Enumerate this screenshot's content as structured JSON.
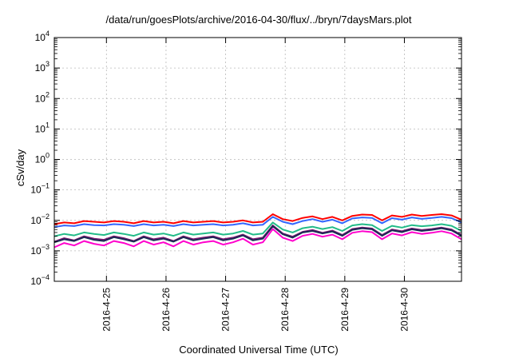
{
  "chart_data": {
    "type": "line",
    "title": "/data/run/goesPlots/archive/2016-04-30/flux/../bryn/7daysMars.plot",
    "xlabel": "Coordinated Universal Time (UTC)",
    "ylabel": "cSv/day",
    "yscale": "log",
    "ylim": [
      0.0001,
      10000
    ],
    "ytick_exponents": [
      -4,
      -3,
      -2,
      -1,
      0,
      1,
      2,
      3,
      4
    ],
    "xlim": [
      "2016-04-24T03:00",
      "2016-04-30T23:00"
    ],
    "x_ticks": [
      "2016-4-25",
      "2016-4-26",
      "2016-4-27",
      "2016-4-28",
      "2016-4-29",
      "2016-4-30"
    ],
    "grid": true,
    "x": [
      "2016-04-24T03:00",
      "2016-04-24T07:00",
      "2016-04-24T11:00",
      "2016-04-24T15:00",
      "2016-04-24T19:00",
      "2016-04-24T23:00",
      "2016-04-25T03:00",
      "2016-04-25T07:00",
      "2016-04-25T11:00",
      "2016-04-25T15:00",
      "2016-04-25T19:00",
      "2016-04-25T23:00",
      "2016-04-26T03:00",
      "2016-04-26T07:00",
      "2016-04-26T11:00",
      "2016-04-26T15:00",
      "2016-04-26T19:00",
      "2016-04-26T23:00",
      "2016-04-27T03:00",
      "2016-04-27T07:00",
      "2016-04-27T11:00",
      "2016-04-27T15:00",
      "2016-04-27T19:00",
      "2016-04-27T23:00",
      "2016-04-28T03:00",
      "2016-04-28T07:00",
      "2016-04-28T11:00",
      "2016-04-28T15:00",
      "2016-04-28T19:00",
      "2016-04-28T23:00",
      "2016-04-29T03:00",
      "2016-04-29T07:00",
      "2016-04-29T11:00",
      "2016-04-29T15:00",
      "2016-04-29T19:00",
      "2016-04-29T23:00",
      "2016-04-30T03:00",
      "2016-04-30T07:00",
      "2016-04-30T11:00",
      "2016-04-30T15:00",
      "2016-04-30T19:00",
      "2016-04-30T23:00"
    ],
    "series": [
      {
        "color": "#ff0000",
        "values": [
          0.0075,
          0.0085,
          0.008,
          0.0095,
          0.009,
          0.0085,
          0.0095,
          0.009,
          0.008,
          0.0095,
          0.0085,
          0.009,
          0.008,
          0.0095,
          0.0085,
          0.009,
          0.0095,
          0.0085,
          0.009,
          0.01,
          0.0085,
          0.009,
          0.016,
          0.011,
          0.0095,
          0.012,
          0.0135,
          0.011,
          0.013,
          0.01,
          0.014,
          0.0155,
          0.015,
          0.01,
          0.0145,
          0.013,
          0.0155,
          0.014,
          0.015,
          0.016,
          0.0145,
          0.0105
        ]
      },
      {
        "color": "#3366ff",
        "values": [
          0.006,
          0.0068,
          0.0065,
          0.0075,
          0.007,
          0.0068,
          0.0075,
          0.0072,
          0.0065,
          0.0075,
          0.0068,
          0.0072,
          0.0065,
          0.0075,
          0.0068,
          0.0072,
          0.0075,
          0.0068,
          0.0072,
          0.008,
          0.0068,
          0.0072,
          0.013,
          0.009,
          0.0075,
          0.0095,
          0.011,
          0.009,
          0.0105,
          0.008,
          0.0115,
          0.0125,
          0.012,
          0.008,
          0.0118,
          0.0105,
          0.0125,
          0.0112,
          0.012,
          0.013,
          0.0118,
          0.0085
        ]
      },
      {
        "color": "#22bb88",
        "values": [
          0.003,
          0.0036,
          0.0032,
          0.004,
          0.0036,
          0.0033,
          0.004,
          0.0036,
          0.0031,
          0.004,
          0.0034,
          0.0037,
          0.0031,
          0.004,
          0.0034,
          0.0037,
          0.004,
          0.0034,
          0.0037,
          0.0045,
          0.0034,
          0.0037,
          0.0085,
          0.005,
          0.004,
          0.0055,
          0.0062,
          0.0052,
          0.006,
          0.0045,
          0.0068,
          0.0075,
          0.007,
          0.0045,
          0.0066,
          0.0058,
          0.007,
          0.0064,
          0.0068,
          0.0075,
          0.0066,
          0.0045
        ]
      },
      {
        "color": "#7a1570",
        "values": [
          0.002,
          0.0026,
          0.0022,
          0.003,
          0.0025,
          0.0023,
          0.003,
          0.0026,
          0.0021,
          0.003,
          0.0024,
          0.0027,
          0.0021,
          0.003,
          0.0024,
          0.0027,
          0.003,
          0.0024,
          0.0027,
          0.0034,
          0.0024,
          0.0027,
          0.0068,
          0.0037,
          0.0029,
          0.0042,
          0.0048,
          0.0039,
          0.0046,
          0.0033,
          0.0052,
          0.0058,
          0.0054,
          0.0033,
          0.005,
          0.0044,
          0.0054,
          0.0048,
          0.0052,
          0.0058,
          0.005,
          0.0033
        ]
      },
      {
        "color": "#1a2a55",
        "values": [
          0.0019,
          0.0024,
          0.0021,
          0.0028,
          0.0023,
          0.0021,
          0.0028,
          0.0024,
          0.002,
          0.0028,
          0.0022,
          0.0025,
          0.002,
          0.0028,
          0.0022,
          0.0025,
          0.0028,
          0.0022,
          0.0025,
          0.0032,
          0.0022,
          0.0025,
          0.0064,
          0.0035,
          0.0027,
          0.004,
          0.0045,
          0.0037,
          0.0043,
          0.0031,
          0.0049,
          0.0055,
          0.0051,
          0.0031,
          0.0047,
          0.0041,
          0.0051,
          0.0045,
          0.0049,
          0.0055,
          0.0047,
          0.0031
        ]
      },
      {
        "color": "#ff00cc",
        "values": [
          0.0013,
          0.0018,
          0.0015,
          0.0021,
          0.0017,
          0.0015,
          0.0021,
          0.0018,
          0.0014,
          0.0021,
          0.0016,
          0.0019,
          0.0014,
          0.0021,
          0.0016,
          0.0019,
          0.0021,
          0.0016,
          0.0019,
          0.0025,
          0.0016,
          0.0019,
          0.0052,
          0.0027,
          0.0021,
          0.0031,
          0.0036,
          0.0029,
          0.0034,
          0.0024,
          0.0039,
          0.0044,
          0.0041,
          0.0024,
          0.0037,
          0.0032,
          0.0041,
          0.0036,
          0.0039,
          0.0044,
          0.0037,
          0.0024
        ]
      }
    ]
  }
}
